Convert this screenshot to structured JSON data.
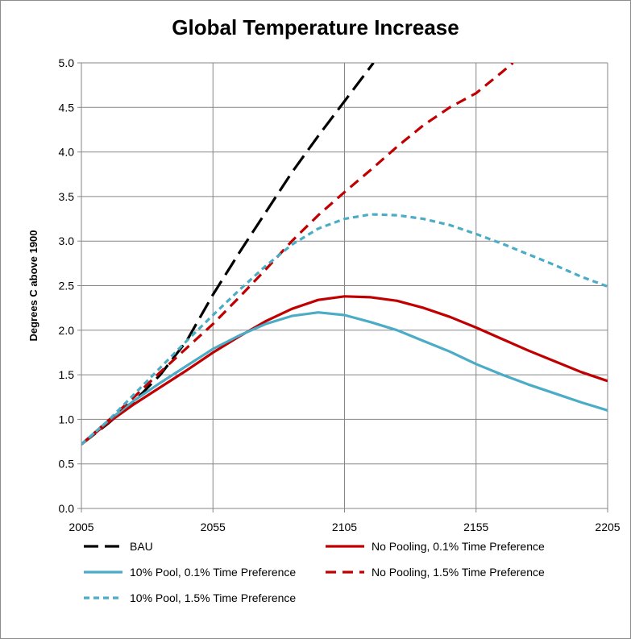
{
  "chart_data": {
    "type": "line",
    "title": "Global Temperature Increase",
    "xlabel": "",
    "ylabel": "Degrees C above 1900",
    "xlim": [
      2005,
      2205
    ],
    "ylim": [
      0,
      5
    ],
    "x_ticks": [
      "2005",
      "2055",
      "2105",
      "2155",
      "2205"
    ],
    "y_ticks": [
      "0.0",
      "0.5",
      "1.0",
      "1.5",
      "2.0",
      "2.5",
      "3.0",
      "3.5",
      "4.0",
      "4.5",
      "5.0"
    ],
    "grid": true,
    "legend_position": "bottom",
    "series": [
      {
        "name": "BAU",
        "color": "#000000",
        "dash": "long-dash",
        "x": [
          2005,
          2015,
          2025,
          2035,
          2045,
          2055,
          2065,
          2075,
          2085,
          2095,
          2105,
          2116
        ],
        "values": [
          0.72,
          0.95,
          1.2,
          1.5,
          1.88,
          2.4,
          2.87,
          3.32,
          3.77,
          4.18,
          4.57,
          5.0
        ]
      },
      {
        "name": "No Pooling, 0.1% Time Preference",
        "color": "#c00000",
        "dash": "solid",
        "x": [
          2005,
          2015,
          2025,
          2035,
          2045,
          2055,
          2065,
          2075,
          2085,
          2095,
          2105,
          2115,
          2125,
          2135,
          2145,
          2155,
          2165,
          2175,
          2185,
          2195,
          2205
        ],
        "values": [
          0.72,
          0.96,
          1.17,
          1.36,
          1.55,
          1.75,
          1.93,
          2.1,
          2.24,
          2.34,
          2.38,
          2.37,
          2.33,
          2.25,
          2.15,
          2.03,
          1.9,
          1.77,
          1.65,
          1.53,
          1.43
        ]
      },
      {
        "name": "10% Pool, 0.1% Time Preference",
        "color": "#4bacc6",
        "dash": "solid",
        "x": [
          2005,
          2015,
          2025,
          2035,
          2045,
          2055,
          2065,
          2075,
          2085,
          2095,
          2105,
          2115,
          2125,
          2135,
          2145,
          2155,
          2165,
          2175,
          2185,
          2195,
          2205
        ],
        "values": [
          0.72,
          0.98,
          1.21,
          1.41,
          1.6,
          1.79,
          1.94,
          2.07,
          2.16,
          2.2,
          2.17,
          2.09,
          2.0,
          1.88,
          1.76,
          1.62,
          1.5,
          1.39,
          1.29,
          1.19,
          1.1
        ]
      },
      {
        "name": "No Pooling, 1.5% Time Preference",
        "color": "#c00000",
        "dash": "dash",
        "x": [
          2005,
          2015,
          2025,
          2035,
          2045,
          2055,
          2065,
          2075,
          2085,
          2095,
          2105,
          2115,
          2125,
          2135,
          2145,
          2155,
          2165,
          2169
        ],
        "values": [
          0.72,
          0.98,
          1.25,
          1.53,
          1.8,
          2.07,
          2.37,
          2.68,
          3.0,
          3.29,
          3.55,
          3.8,
          4.06,
          4.3,
          4.5,
          4.66,
          4.9,
          5.0
        ]
      },
      {
        "name": "10% Pool, 1.5% Time Preference",
        "color": "#4bacc6",
        "dash": "short-dash",
        "x": [
          2005,
          2015,
          2025,
          2035,
          2045,
          2055,
          2065,
          2075,
          2085,
          2095,
          2105,
          2115,
          2125,
          2135,
          2145,
          2155,
          2165,
          2175,
          2185,
          2195,
          2205
        ],
        "values": [
          0.72,
          0.98,
          1.28,
          1.58,
          1.88,
          2.17,
          2.45,
          2.72,
          2.96,
          3.14,
          3.25,
          3.3,
          3.29,
          3.25,
          3.18,
          3.08,
          2.97,
          2.85,
          2.73,
          2.6,
          2.49
        ]
      }
    ]
  }
}
